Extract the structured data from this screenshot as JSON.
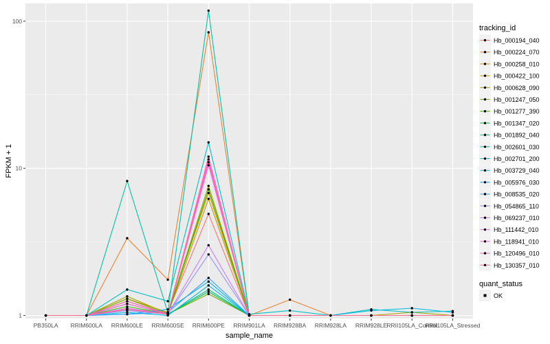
{
  "chart_data": {
    "type": "line",
    "xlabel": "sample_name",
    "ylabel": "FPKM + 1",
    "y_scale": "log",
    "y_ticks": [
      1,
      10,
      100
    ],
    "categories": [
      "PB350LA",
      "RRIM600LA",
      "RRIM600LE",
      "RRIM600SE",
      "RRIM600PE",
      "RRIM901LA",
      "RRIM928BA",
      "RRIM928LA",
      "RRIM928LE",
      "RRII105LA_Control",
      "RRII105LA_Stressed"
    ],
    "grid": true,
    "legend_title": "tracking_id",
    "legend_position": "right",
    "series": [
      {
        "name": "Hb_000194_040",
        "color": "#F8766D",
        "values": [
          1,
          1,
          1.1,
          1.05,
          4.9,
          1,
          1,
          1,
          1,
          1,
          1
        ]
      },
      {
        "name": "Hb_000224_070",
        "color": "#EA8331",
        "values": [
          1,
          1,
          3.35,
          1.75,
          84,
          1,
          1.28,
          1,
          1,
          1,
          1
        ]
      },
      {
        "name": "Hb_000258_010",
        "color": "#D89000",
        "values": [
          1,
          1,
          1.3,
          1.05,
          6.8,
          1,
          1,
          1,
          1,
          1,
          1
        ]
      },
      {
        "name": "Hb_000422_100",
        "color": "#C09B00",
        "values": [
          1,
          1,
          1.25,
          1.02,
          6.2,
          1,
          1,
          1,
          1,
          1,
          1
        ]
      },
      {
        "name": "Hb_000628_090",
        "color": "#A3A500",
        "values": [
          1,
          1,
          1.35,
          1.03,
          7.6,
          1,
          1,
          1,
          1,
          1.05,
          1
        ]
      },
      {
        "name": "Hb_001247_050",
        "color": "#7CAE00",
        "values": [
          1,
          1,
          1.3,
          1.02,
          1.4,
          1,
          1,
          1,
          1,
          1,
          1
        ]
      },
      {
        "name": "Hb_001277_390",
        "color": "#39B600",
        "values": [
          1,
          1,
          1.15,
          1.02,
          7.2,
          1,
          1,
          1,
          1,
          1,
          1
        ]
      },
      {
        "name": "Hb_001347_020",
        "color": "#00BB4E",
        "values": [
          1,
          1,
          1.2,
          1.02,
          1.45,
          1,
          1,
          1,
          1,
          1,
          1
        ]
      },
      {
        "name": "Hb_001892_040",
        "color": "#00BF7D",
        "values": [
          1,
          1,
          1.1,
          1.02,
          1.5,
          1,
          1,
          1,
          1,
          1,
          1
        ]
      },
      {
        "name": "Hb_002601_030",
        "color": "#00C1A3",
        "values": [
          1,
          1,
          8.2,
          1.05,
          118,
          1,
          1,
          1,
          1,
          1,
          1
        ]
      },
      {
        "name": "Hb_002701_200",
        "color": "#00BFC4",
        "values": [
          1,
          1,
          1.5,
          1.25,
          15,
          1.02,
          1.08,
          1,
          1.1,
          1.05,
          1.07
        ]
      },
      {
        "name": "Hb_003729_040",
        "color": "#00BAE0",
        "values": [
          1,
          1,
          1.05,
          1,
          1.6,
          1,
          1,
          1,
          1.08,
          1.12,
          1.05
        ]
      },
      {
        "name": "Hb_005976_030",
        "color": "#00B0F6",
        "values": [
          1,
          1,
          1.02,
          1.1,
          1.7,
          1,
          1,
          1,
          1,
          1,
          1
        ]
      },
      {
        "name": "Hb_008535_020",
        "color": "#35A2FF",
        "values": [
          1,
          1,
          1.02,
          1.05,
          1.8,
          1,
          1,
          1,
          1,
          1,
          1
        ]
      },
      {
        "name": "Hb_054865_110",
        "color": "#9590FF",
        "values": [
          1,
          1,
          1.08,
          1.02,
          2.6,
          1,
          1,
          1,
          1,
          1,
          1
        ]
      },
      {
        "name": "Hb_069237_010",
        "color": "#C77CFF",
        "values": [
          1,
          1,
          1.1,
          1.02,
          3,
          1,
          1,
          1,
          1,
          1,
          1
        ]
      },
      {
        "name": "Hb_111442_010",
        "color": "#E76BF3",
        "values": [
          1,
          1,
          1.12,
          1.02,
          10.5,
          1,
          1,
          1,
          1,
          1,
          1
        ]
      },
      {
        "name": "Hb_118941_010",
        "color": "#FA62DB",
        "values": [
          1,
          1,
          1.2,
          1.02,
          11.5,
          1,
          1,
          1,
          1,
          1,
          1
        ]
      },
      {
        "name": "Hb_120496_010",
        "color": "#FF62BC",
        "values": [
          1,
          1,
          1.25,
          1.02,
          12,
          1,
          1,
          1,
          1,
          1,
          1
        ]
      },
      {
        "name": "Hb_130357_010",
        "color": "#FF6C91",
        "values": [
          1,
          1,
          1.1,
          1.02,
          11,
          1,
          1,
          1,
          1,
          1,
          1
        ]
      }
    ],
    "shape_legend": {
      "title": "quant_status",
      "items": [
        {
          "label": "OK"
        }
      ]
    },
    "colors": {
      "panel_background": "#EBEBEB",
      "grid_major": "#FFFFFF",
      "point": "#000000"
    }
  }
}
